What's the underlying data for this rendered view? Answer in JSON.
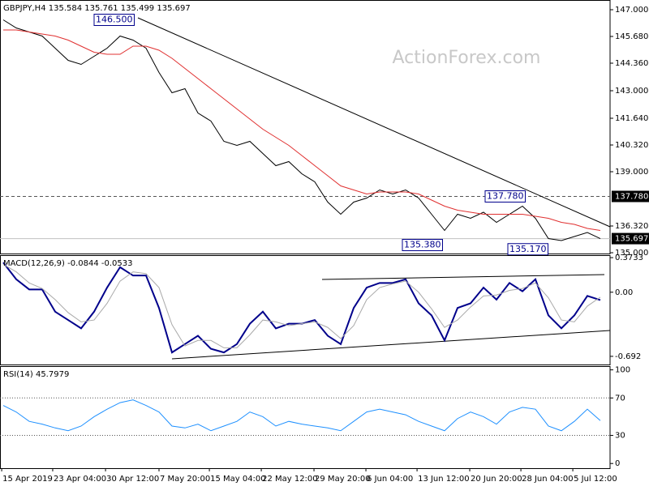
{
  "chart_data": [
    {
      "type": "line",
      "title": "GBPJPY,H4  135.584 135.761 135.499 135.697",
      "watermark": "ActionForex.com",
      "x": [
        0,
        1,
        2,
        3,
        4,
        5,
        6,
        7,
        8,
        9,
        10,
        11,
        12,
        13,
        14,
        15,
        16,
        17,
        18,
        19,
        20,
        21,
        22,
        23,
        24,
        25,
        26,
        27,
        28,
        29,
        30,
        31,
        32,
        33,
        34,
        35,
        36,
        37,
        38,
        39,
        40,
        41,
        42,
        43,
        44,
        45,
        46
      ],
      "xlim": [
        -0.25,
        46.75
      ],
      "series": [
        {
          "name": "GBPJPY",
          "color": "#000000",
          "values": [
            146.5,
            146.1,
            145.9,
            145.7,
            145.1,
            144.5,
            144.3,
            144.7,
            145.1,
            145.7,
            145.5,
            145.1,
            143.9,
            142.9,
            143.1,
            141.9,
            141.5,
            140.5,
            140.3,
            140.5,
            139.9,
            139.3,
            139.5,
            138.9,
            138.5,
            137.5,
            136.9,
            137.5,
            137.7,
            138.1,
            137.9,
            138.1,
            137.7,
            136.9,
            136.1,
            136.9,
            136.7,
            137.0,
            136.5,
            136.9,
            137.3,
            136.7,
            135.7,
            135.6,
            135.8,
            136.0,
            135.697
          ]
        },
        {
          "name": "MA",
          "color": "#e03030",
          "values": [
            146.0,
            146.0,
            145.9,
            145.8,
            145.7,
            145.5,
            145.2,
            144.9,
            144.8,
            144.8,
            145.2,
            145.2,
            145.0,
            144.6,
            144.1,
            143.6,
            143.1,
            142.6,
            142.1,
            141.6,
            141.1,
            140.7,
            140.3,
            139.8,
            139.3,
            138.8,
            138.3,
            138.1,
            137.9,
            138.0,
            138.0,
            138.0,
            137.9,
            137.6,
            137.3,
            137.1,
            137.0,
            136.9,
            136.9,
            136.9,
            136.9,
            136.8,
            136.7,
            136.5,
            136.4,
            136.2,
            136.1
          ]
        }
      ],
      "ylim": [
        134.96,
        147.48
      ],
      "yticks": [
        {
          "value": 147,
          "label": "147.000"
        },
        {
          "value": 145.68,
          "label": "145.680"
        },
        {
          "value": 144.36,
          "label": "144.360"
        },
        {
          "value": 143,
          "label": "143.000"
        },
        {
          "value": 141.64,
          "label": "141.640"
        },
        {
          "value": 140.32,
          "label": "140.320"
        },
        {
          "value": 139,
          "label": "139.000"
        },
        {
          "value": 136.32,
          "label": "136.320"
        },
        {
          "value": 135,
          "label": "135.000"
        }
      ],
      "hlines": [
        {
          "value": 137.78,
          "label": "137.780",
          "style": "dashed"
        },
        {
          "value": 135.697,
          "label": "135.697",
          "style": "solid"
        }
      ],
      "annotations": [
        {
          "value": 146.5,
          "label": "146.500"
        },
        {
          "value": 137.78,
          "label": "137.780"
        },
        {
          "value": 135.38,
          "label": "135.380"
        },
        {
          "value": 135.17,
          "label": "135.170"
        }
      ]
    },
    {
      "type": "line",
      "title": "MACD(12,26,9) -0.0844 -0.0533",
      "x": [
        0,
        1,
        2,
        3,
        4,
        5,
        6,
        7,
        8,
        9,
        10,
        11,
        12,
        13,
        14,
        15,
        16,
        17,
        18,
        19,
        20,
        21,
        22,
        23,
        24,
        25,
        26,
        27,
        28,
        29,
        30,
        31,
        32,
        33,
        34,
        35,
        36,
        37,
        38,
        39,
        40,
        41,
        42,
        43,
        44,
        45,
        46
      ],
      "xlim": [
        -0.25,
        46.75
      ],
      "series": [
        {
          "name": "MACD",
          "color": "#00008b",
          "values": [
            0.32,
            0.14,
            0.03,
            0.03,
            -0.21,
            -0.3,
            -0.39,
            -0.21,
            0.05,
            0.27,
            0.18,
            0.18,
            -0.17,
            -0.65,
            -0.56,
            -0.47,
            -0.61,
            -0.65,
            -0.56,
            -0.34,
            -0.21,
            -0.39,
            -0.34,
            -0.34,
            -0.3,
            -0.47,
            -0.56,
            -0.17,
            0.05,
            0.1,
            0.1,
            0.14,
            -0.12,
            -0.25,
            -0.52,
            -0.17,
            -0.12,
            0.05,
            -0.08,
            0.1,
            0.01,
            0.14,
            -0.25,
            -0.39,
            -0.25,
            -0.04,
            -0.0844
          ]
        },
        {
          "name": "Signal",
          "color": "#a9a9a9",
          "values": [
            0.3,
            0.22,
            0.1,
            0.04,
            -0.08,
            -0.22,
            -0.32,
            -0.3,
            -0.12,
            0.12,
            0.22,
            0.2,
            0.05,
            -0.35,
            -0.58,
            -0.52,
            -0.52,
            -0.6,
            -0.6,
            -0.46,
            -0.3,
            -0.32,
            -0.36,
            -0.34,
            -0.32,
            -0.38,
            -0.5,
            -0.36,
            -0.08,
            0.05,
            0.09,
            0.12,
            0.0,
            -0.18,
            -0.38,
            -0.3,
            -0.16,
            -0.04,
            -0.03,
            0.02,
            0.04,
            0.1,
            -0.06,
            -0.3,
            -0.32,
            -0.15,
            -0.0533
          ]
        }
      ],
      "ylim": [
        -0.78,
        0.4
      ],
      "yticks": [
        0.3733,
        {
          "value": 0,
          "label": "0.00"
        },
        -0.692
      ]
    },
    {
      "type": "line",
      "title": "RSI(14) 45.7979",
      "x": [
        0,
        1,
        2,
        3,
        4,
        5,
        6,
        7,
        8,
        9,
        10,
        11,
        12,
        13,
        14,
        15,
        16,
        17,
        18,
        19,
        20,
        21,
        22,
        23,
        24,
        25,
        26,
        27,
        28,
        29,
        30,
        31,
        32,
        33,
        34,
        35,
        36,
        37,
        38,
        39,
        40,
        41,
        42,
        43,
        44,
        45,
        46
      ],
      "xlim": [
        -0.25,
        46.75
      ],
      "series": [
        {
          "name": "RSI",
          "color": "#1e90ff",
          "values": [
            62,
            55,
            45,
            42,
            38,
            35,
            40,
            50,
            58,
            65,
            68,
            62,
            55,
            40,
            38,
            42,
            35,
            40,
            45,
            55,
            50,
            40,
            45,
            42,
            40,
            38,
            35,
            45,
            55,
            58,
            55,
            52,
            45,
            40,
            35,
            48,
            55,
            50,
            42,
            55,
            60,
            58,
            40,
            35,
            45,
            58,
            45.7979
          ]
        }
      ],
      "ylim": [
        -5,
        104
      ],
      "yticks": [
        0,
        30,
        70,
        100
      ],
      "hlines": [
        {
          "value": 70,
          "style": "dotted"
        },
        {
          "value": 30,
          "style": "dotted"
        }
      ],
      "xticks": [
        {
          "value": -0.12,
          "label": "15 Apr 2019"
        },
        {
          "value": 3.81,
          "label": "23 Apr 04:00"
        },
        {
          "value": 7.88,
          "label": "30 Apr 12:00"
        },
        {
          "value": 12,
          "label": "7 May 20:00"
        },
        {
          "value": 15.88,
          "label": "15 May 04:00"
        },
        {
          "value": 19.88,
          "label": "22 May 12:00"
        },
        {
          "value": 23.94,
          "label": "29 May 20:00"
        },
        {
          "value": 27.94,
          "label": "6 Jun 04:00"
        },
        {
          "value": 31.88,
          "label": "13 Jun 12:00"
        },
        {
          "value": 35.94,
          "label": "20 Jun 20:00"
        },
        {
          "value": 39.88,
          "label": "28 Jun 04:00"
        },
        {
          "value": 43.88,
          "label": "5 Jul 12:00"
        }
      ]
    }
  ]
}
